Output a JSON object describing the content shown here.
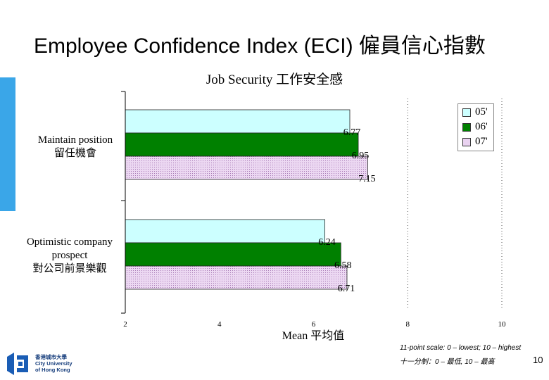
{
  "slide": {
    "title": "Employee Confidence Index (ECI) 僱員信心指數",
    "page_number": "10",
    "note_line1": "11-point scale: 0 – lowest; 10 – highest",
    "note_line2": "十一分制：0 – 最低, 10 – 最高",
    "logo": {
      "line1": "香港城市大學",
      "line2": "City University",
      "line3": "of Hong Kong"
    },
    "colors": {
      "accent": "#3aa6e8",
      "logo": "#1a5db5"
    }
  },
  "chart_data": {
    "type": "bar",
    "orientation": "horizontal",
    "title": "Job Security 工作安全感",
    "xlabel": "Mean 平均值",
    "ylabel": "",
    "xlim": [
      2,
      10
    ],
    "x_ticks": [
      "2",
      "4",
      "6",
      "8",
      "10"
    ],
    "grid": "vertical dashed lines at 8 and 10",
    "legend_position": "top-right",
    "categories": [
      [
        "Maintain position",
        "留任機會"
      ],
      [
        "Optimistic company",
        "prospect",
        "對公司前景樂觀"
      ]
    ],
    "series": [
      {
        "name": "05'",
        "values": [
          6.77,
          6.24
        ],
        "labels": [
          "6.77",
          "6.24"
        ],
        "color": "#ccffff",
        "pattern": "solid"
      },
      {
        "name": "06'",
        "values": [
          6.95,
          6.58
        ],
        "labels": [
          "6.95",
          "6.58"
        ],
        "color": "#008000",
        "pattern": "solid"
      },
      {
        "name": "07'",
        "values": [
          7.15,
          6.71
        ],
        "labels": [
          "7.15",
          "6.71"
        ],
        "color": "#e9d2f0",
        "pattern": "dotted"
      }
    ]
  }
}
